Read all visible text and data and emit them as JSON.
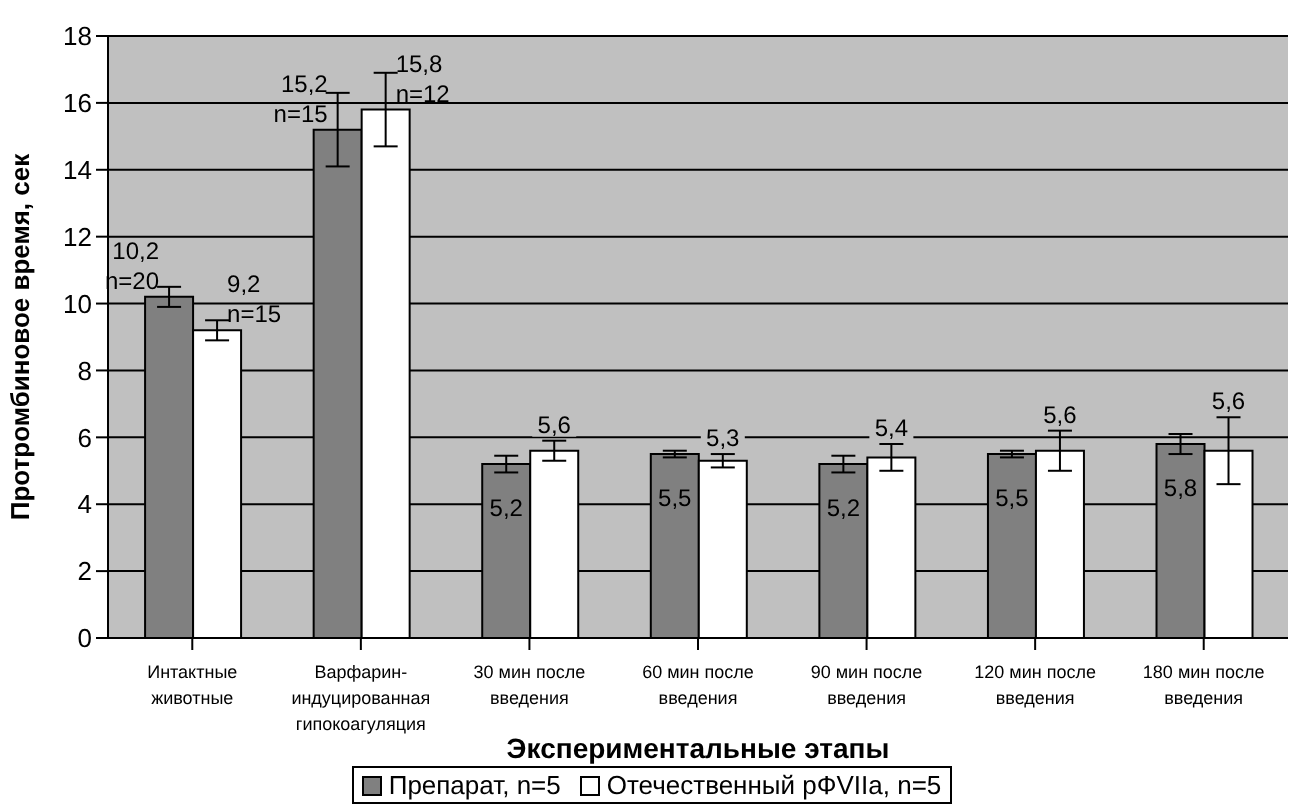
{
  "chart_data": {
    "type": "bar",
    "xlabel": "Экспериментальные этапы",
    "ylabel": "Протромбиновое время, сек",
    "categories": [
      "Интактные животные",
      "Варфарин-индуцированная гипокоагуляция",
      "30 мин после введения",
      "60 мин после введения",
      "90 мин после введения",
      "120 мин после введения",
      "180 мин после введения"
    ],
    "series": [
      {
        "name": "Препарат, n=5",
        "color": "#808080",
        "values": [
          10.2,
          15.2,
          5.2,
          5.5,
          5.2,
          5.5,
          5.8
        ],
        "errors": [
          0.3,
          1.1,
          0.25,
          0.1,
          0.25,
          0.1,
          0.3
        ],
        "value_labels": [
          "10,2\nn=20",
          "15,2\nn=15",
          "5,2",
          "5,5",
          "5,2",
          "5,5",
          "5,8"
        ]
      },
      {
        "name": "Отечественный рФVIIa, n=5",
        "color": "#ffffff",
        "values": [
          9.2,
          15.8,
          5.6,
          5.3,
          5.4,
          5.6,
          5.6
        ],
        "errors": [
          0.3,
          1.1,
          0.3,
          0.2,
          0.4,
          0.6,
          1.0
        ],
        "value_labels": [
          "9,2\nn=15",
          "15,8\nn=12",
          "5,6",
          "5,3",
          "5,4",
          "5,6",
          "5,6"
        ]
      }
    ],
    "ylim": [
      0,
      18
    ],
    "yticks": [
      0,
      2,
      4,
      6,
      8,
      10,
      12,
      14,
      16,
      18
    ],
    "grid": "y",
    "legend": "bottom"
  }
}
